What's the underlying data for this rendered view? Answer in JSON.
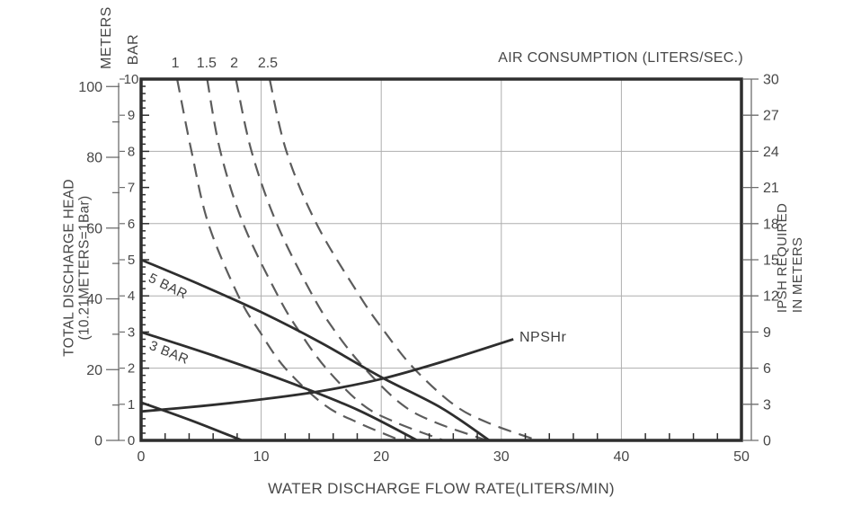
{
  "chart_data": {
    "type": "line",
    "titles": {
      "top_axis": "AIR CONSUMPTION (LITERS/SEC.)",
      "x_axis": "WATER DISCHARGE FLOW RATE(LITERS/MIN)",
      "left_axis_line1": "TOTAL DISCHARGE HEAD",
      "left_axis_line2": "(10.21METERS=1Bar)",
      "left_unit_meters": "METERS",
      "left_unit_bar": "BAR",
      "right_axis_line1": "IPSH REQUIRED",
      "right_axis_line2": "IN METERS"
    },
    "axes": {
      "x": {
        "min": 0,
        "max": 50,
        "tick_labels": [
          0,
          10,
          20,
          30,
          40,
          50
        ],
        "minor_step": 2,
        "gridlines": [
          10,
          20,
          30,
          40
        ]
      },
      "left_meters": {
        "min": 0,
        "max": 100,
        "tick_labels": [
          0,
          20,
          40,
          60,
          80,
          100
        ],
        "minor_step": 10,
        "meters_per_bar": 10.21
      },
      "left_bar": {
        "min": 0,
        "max": 10,
        "tick_labels": [
          0,
          1,
          2,
          3,
          4,
          5,
          6,
          7,
          8,
          9,
          10
        ],
        "minor_step": 0.2,
        "gridlines": [
          2,
          4,
          6,
          8
        ]
      },
      "right_npsh": {
        "min": 0,
        "max": 30,
        "tick_labels": [
          0,
          3,
          6,
          9,
          12,
          15,
          18,
          21,
          24,
          27,
          30
        ]
      }
    },
    "series": [
      {
        "name": "head-curve-5bar",
        "label": "5 BAR",
        "style": "solid",
        "y_axis": "bar",
        "points": [
          [
            0,
            5
          ],
          [
            5,
            4.3
          ],
          [
            10,
            3.55
          ],
          [
            15,
            2.7
          ],
          [
            20,
            1.75
          ],
          [
            25,
            0.9
          ],
          [
            29,
            0
          ]
        ]
      },
      {
        "name": "head-curve-3bar",
        "label": "3 BAR",
        "style": "solid",
        "y_axis": "bar",
        "points": [
          [
            0,
            3
          ],
          [
            6,
            2.35
          ],
          [
            12,
            1.65
          ],
          [
            18,
            0.85
          ],
          [
            23,
            0
          ]
        ]
      },
      {
        "name": "head-curve-low",
        "label": "",
        "style": "solid",
        "y_axis": "bar",
        "points": [
          [
            0,
            1.05
          ],
          [
            4.2,
            0.55
          ],
          [
            8.4,
            0
          ]
        ]
      },
      {
        "name": "npshr-curve",
        "label": "NPSHr",
        "style": "solid",
        "y_axis": "npsh",
        "points": [
          [
            0,
            2.4
          ],
          [
            5,
            2.85
          ],
          [
            10,
            3.4
          ],
          [
            15,
            4.1
          ],
          [
            20,
            5.1
          ],
          [
            25,
            6.5
          ],
          [
            31,
            8.4
          ]
        ]
      },
      {
        "name": "air-curve-1",
        "label": "1",
        "style": "dashed",
        "y_axis": "bar",
        "points": [
          [
            3,
            10
          ],
          [
            4.2,
            8
          ],
          [
            5.6,
            6
          ],
          [
            8.1,
            4
          ],
          [
            9.9,
            3
          ],
          [
            12,
            2
          ],
          [
            15.2,
            1
          ],
          [
            18,
            0.5
          ],
          [
            21.6,
            0
          ]
        ]
      },
      {
        "name": "air-curve-1-5",
        "label": "1.5",
        "style": "dashed",
        "y_axis": "bar",
        "points": [
          [
            5.5,
            10
          ],
          [
            6.6,
            8
          ],
          [
            8.5,
            6
          ],
          [
            11.4,
            4
          ],
          [
            13.2,
            3
          ],
          [
            15.4,
            2
          ],
          [
            18.4,
            1
          ],
          [
            21.2,
            0.5
          ],
          [
            25.2,
            0
          ]
        ]
      },
      {
        "name": "air-curve-2",
        "label": "2",
        "style": "dashed",
        "y_axis": "bar",
        "points": [
          [
            7.9,
            10
          ],
          [
            9.2,
            8
          ],
          [
            11.3,
            6
          ],
          [
            14.3,
            4
          ],
          [
            16.2,
            3
          ],
          [
            18.6,
            2
          ],
          [
            21.7,
            1
          ],
          [
            24.5,
            0.5
          ],
          [
            28.8,
            0
          ]
        ]
      },
      {
        "name": "air-curve-2-5",
        "label": "2.5",
        "style": "dashed",
        "y_axis": "bar",
        "points": [
          [
            10.7,
            10
          ],
          [
            12.1,
            8
          ],
          [
            14.6,
            6
          ],
          [
            18.2,
            4
          ],
          [
            20.3,
            3
          ],
          [
            22.7,
            2
          ],
          [
            26,
            1
          ],
          [
            28.8,
            0.5
          ],
          [
            33,
            0
          ]
        ]
      }
    ],
    "curve_labels": {
      "bar5": "5 BAR",
      "bar3": "3 BAR",
      "npshr": "NPSHr"
    },
    "air_curve_top_labels": [
      {
        "text": "1",
        "flow": 3
      },
      {
        "text": "1.5",
        "flow": 5.6
      },
      {
        "text": "2",
        "flow": 7.9
      },
      {
        "text": "2.5",
        "flow": 10.7
      }
    ],
    "colors": {
      "solid_line": "#2e2e2e",
      "dashed_line": "#5c5c5c",
      "gridline": "#aeaeae",
      "axis": "#6e6e6e",
      "tick": "#2e2e2e",
      "text": "#474747",
      "background": "#ffffff"
    }
  }
}
